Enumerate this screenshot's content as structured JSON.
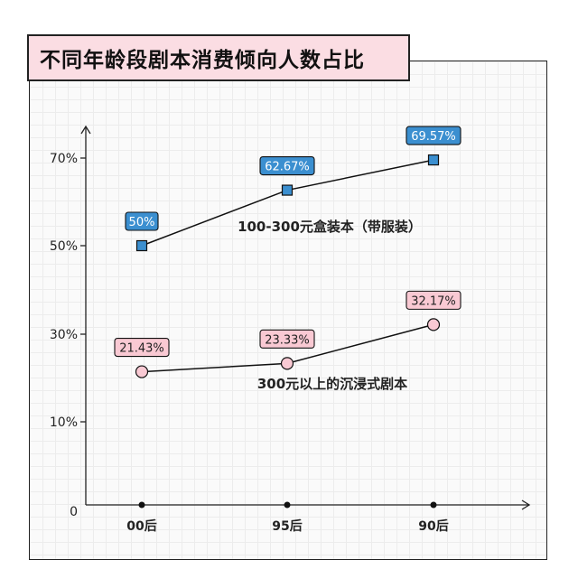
{
  "chart_data": {
    "type": "line",
    "title": "不同年龄段剧本消费倾向人数占比",
    "categories": [
      "00后",
      "95后",
      "90后"
    ],
    "y_ticks": [
      {
        "value": 70,
        "label": "70%"
      },
      {
        "value": 50,
        "label": "50%"
      },
      {
        "value": 30,
        "label": "30%"
      },
      {
        "value": 10,
        "label": "10%"
      },
      {
        "value": 0,
        "label": "0"
      }
    ],
    "ylim": [
      0,
      80
    ],
    "grid": true,
    "series": [
      {
        "name": "100-300元盒装本（带服装）",
        "values": [
          50,
          62.67,
          69.57
        ],
        "labels": [
          "50%",
          "62.67%",
          "69.57%"
        ],
        "marker": "square",
        "color": "#3b8fd0",
        "label_bg": "#3b8fd0",
        "label_color": "#ffffff"
      },
      {
        "name": "300元以上的沉浸式剧本",
        "values": [
          21.43,
          23.33,
          32.17
        ],
        "labels": [
          "21.43%",
          "23.33%",
          "32.17%"
        ],
        "marker": "circle",
        "color": "#f9c9d3",
        "label_bg": "#f9c9d3",
        "label_color": "#222222"
      }
    ]
  }
}
